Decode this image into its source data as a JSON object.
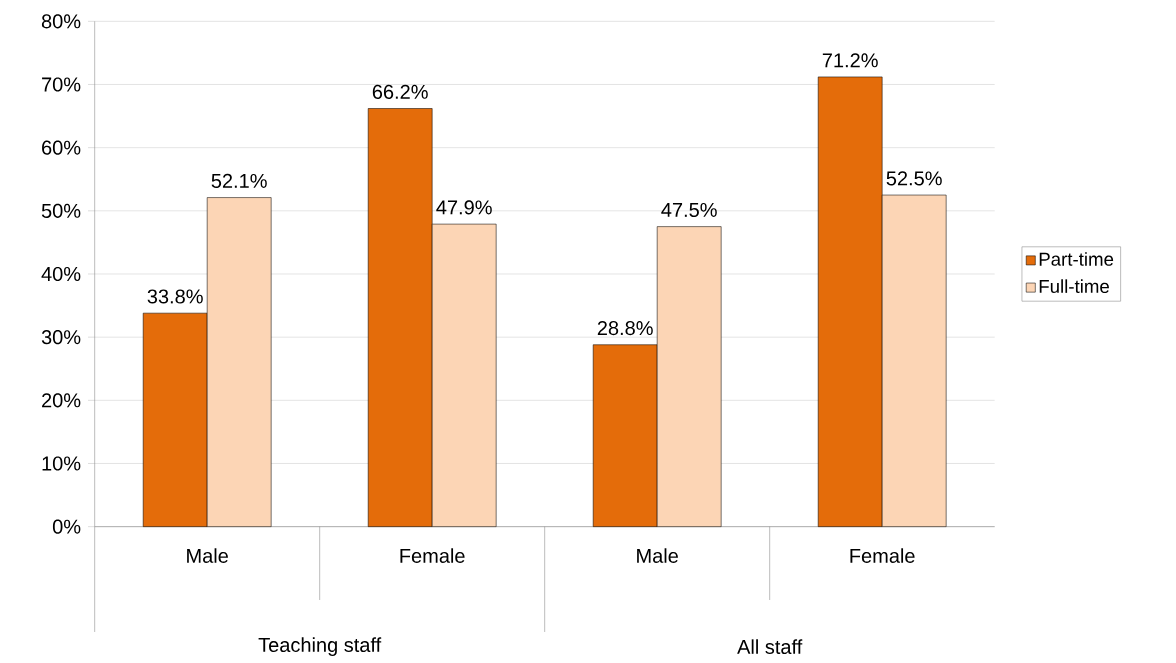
{
  "chart_data": {
    "type": "bar",
    "categories": [
      "Male",
      "Female",
      "Male",
      "Female"
    ],
    "series": [
      {
        "name": "Part-time",
        "color": "#e46c0a",
        "values": [
          33.8,
          66.2,
          28.8,
          71.2
        ],
        "value_labels": [
          "33.8%",
          "66.2%",
          "28.8%",
          "71.2%"
        ]
      },
      {
        "name": "Full-time",
        "color": "#fcd5b5",
        "values": [
          52.1,
          47.9,
          47.5,
          52.5
        ],
        "value_labels": [
          "52.1%",
          "47.9%",
          "47.5%",
          "52.5%"
        ]
      }
    ],
    "annotations": [
      "Teaching staff",
      "All staff"
    ],
    "ylim": [
      0,
      80
    ],
    "yticks": [
      {
        "value": 0,
        "label": "0%"
      },
      {
        "value": 10,
        "label": "10%"
      },
      {
        "value": 20,
        "label": "20%"
      },
      {
        "value": 30,
        "label": "30%"
      },
      {
        "value": 40,
        "label": "40%"
      },
      {
        "value": 50,
        "label": "50%"
      },
      {
        "value": 60,
        "label": "60%"
      },
      {
        "value": 70,
        "label": "70%"
      },
      {
        "value": 80,
        "label": "80%"
      }
    ],
    "grid": "y",
    "legend": "right"
  }
}
